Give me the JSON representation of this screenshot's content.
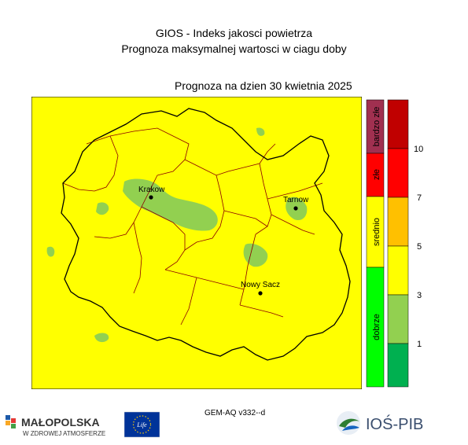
{
  "header": {
    "title": "GIOS - Indeks jakosci powietrza",
    "subtitle": "Prognoza maksymalnej wartosci w ciagu doby",
    "forecast_date": "Prognoza na dzien  30 kwietnia 2025"
  },
  "map": {
    "cities": [
      {
        "name": "Krakow"
      },
      {
        "name": "Tarnow"
      },
      {
        "name": "Nowy Sacz"
      }
    ],
    "colors": {
      "background": "#ffff00",
      "good_area": "#92d050",
      "border": "#000000",
      "district": "#8b0000"
    }
  },
  "scale": {
    "categories": [
      {
        "label": "bardzo złe",
        "color": "#a03050"
      },
      {
        "label": "złe",
        "color": "#ff0000"
      },
      {
        "label": "srednio",
        "color": "#ffff00"
      },
      {
        "label": "dobrze",
        "color": "#00ff00"
      }
    ],
    "bands": [
      {
        "color": "#c00000"
      },
      {
        "color": "#ff0000"
      },
      {
        "color": "#ffc000"
      },
      {
        "color": "#ffff00"
      },
      {
        "color": "#92d050"
      },
      {
        "color": "#00b050"
      }
    ],
    "ticks": [
      "10",
      "7",
      "5",
      "3",
      "1"
    ]
  },
  "footer": {
    "model": "GEM-AQ v332--d",
    "logo_malopolska_line1": "MAŁOPOLSKA",
    "logo_malopolska_line2": "W ZDROWEJ ATMOSFERZE",
    "logo_eu": "Life",
    "logo_ios": "IOŚ-PIB"
  }
}
